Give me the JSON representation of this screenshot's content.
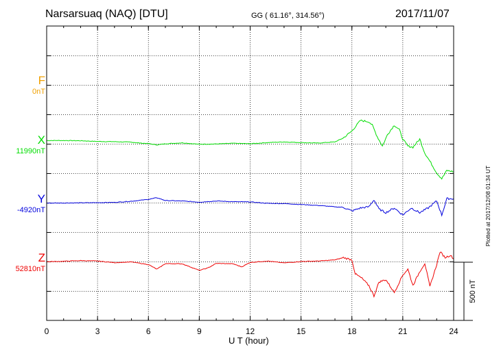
{
  "header": {
    "station": "Narsarsuaq (NAQ)  [DTU]",
    "coords": "GG ( 61.16°, 314.56°)",
    "date": "2017/11/07"
  },
  "channels": [
    {
      "symbol": "F",
      "baseline": "0nT",
      "color": "#f0a000"
    },
    {
      "symbol": "X",
      "baseline": "11990nT",
      "color": "#00dd00"
    },
    {
      "symbol": "Y",
      "baseline": "-4920nT",
      "color": "#0000dd"
    },
    {
      "symbol": "Z",
      "baseline": "52810nT",
      "color": "#ee0000"
    }
  ],
  "plotted": "Plotted at 2017/12/08 01:34 UT",
  "chart_data": {
    "type": "line",
    "xlabel": "U T (hour)",
    "xlim": [
      0,
      24
    ],
    "xticks": [
      0,
      3,
      6,
      9,
      12,
      15,
      18,
      21,
      24
    ],
    "scale_bar": "500 nT",
    "scale_bar_nT": 500,
    "grid": true,
    "series": [
      {
        "name": "X",
        "color": "#00dd00",
        "points": [
          [
            0,
            28
          ],
          [
            1,
            28
          ],
          [
            2,
            26
          ],
          [
            3,
            20
          ],
          [
            4,
            18
          ],
          [
            5,
            14
          ],
          [
            5.5,
            6
          ],
          [
            6,
            2
          ],
          [
            6.5,
            -10
          ],
          [
            7,
            0
          ],
          [
            8,
            8
          ],
          [
            9,
            -4
          ],
          [
            10,
            -2
          ],
          [
            11,
            4
          ],
          [
            12,
            0
          ],
          [
            13,
            10
          ],
          [
            14,
            16
          ],
          [
            15,
            10
          ],
          [
            16,
            6
          ],
          [
            17,
            16
          ],
          [
            17.5,
            50
          ],
          [
            18,
            110
          ],
          [
            18.5,
            200
          ],
          [
            19,
            190
          ],
          [
            19.2,
            160
          ],
          [
            19.5,
            60
          ],
          [
            19.8,
            -20
          ],
          [
            20.1,
            80
          ],
          [
            20.5,
            160
          ],
          [
            20.8,
            120
          ],
          [
            21,
            40
          ],
          [
            21.3,
            -20
          ],
          [
            21.6,
            -30
          ],
          [
            22,
            40
          ],
          [
            22.3,
            -80
          ],
          [
            22.6,
            -150
          ],
          [
            23,
            -250
          ],
          [
            23.3,
            -300
          ],
          [
            23.6,
            -230
          ],
          [
            24,
            -240
          ]
        ]
      },
      {
        "name": "Y",
        "color": "#0000dd",
        "points": [
          [
            0,
            2
          ],
          [
            2,
            4
          ],
          [
            4,
            8
          ],
          [
            5,
            18
          ],
          [
            6,
            34
          ],
          [
            6.5,
            48
          ],
          [
            7,
            24
          ],
          [
            8,
            20
          ],
          [
            9,
            10
          ],
          [
            10,
            20
          ],
          [
            11,
            14
          ],
          [
            12,
            12
          ],
          [
            13,
            0
          ],
          [
            14,
            -2
          ],
          [
            15,
            -10
          ],
          [
            16,
            -18
          ],
          [
            17,
            -30
          ],
          [
            17.5,
            -34
          ],
          [
            18,
            -66
          ],
          [
            18.5,
            -40
          ],
          [
            19,
            -30
          ],
          [
            19.3,
            30
          ],
          [
            19.6,
            -50
          ],
          [
            20,
            -80
          ],
          [
            20.5,
            -40
          ],
          [
            21,
            -100
          ],
          [
            21.5,
            -40
          ],
          [
            22,
            -80
          ],
          [
            22.5,
            -40
          ],
          [
            23,
            20
          ],
          [
            23.3,
            -100
          ],
          [
            23.6,
            40
          ],
          [
            24,
            40
          ]
        ]
      },
      {
        "name": "Z",
        "color": "#ee0000",
        "points": [
          [
            0,
            4
          ],
          [
            1,
            8
          ],
          [
            2,
            14
          ],
          [
            3,
            10
          ],
          [
            4,
            -4
          ],
          [
            5,
            2
          ],
          [
            6,
            -20
          ],
          [
            6.5,
            -60
          ],
          [
            7,
            -12
          ],
          [
            8,
            -14
          ],
          [
            9,
            -70
          ],
          [
            9.5,
            -50
          ],
          [
            10,
            -10
          ],
          [
            11,
            -14
          ],
          [
            11.5,
            -40
          ],
          [
            12,
            -2
          ],
          [
            13,
            10
          ],
          [
            14,
            -6
          ],
          [
            15,
            6
          ],
          [
            16,
            10
          ],
          [
            17,
            20
          ],
          [
            17.5,
            40
          ],
          [
            18,
            20
          ],
          [
            18.2,
            -100
          ],
          [
            18.6,
            -140
          ],
          [
            19,
            -200
          ],
          [
            19.3,
            -290
          ],
          [
            19.6,
            -170
          ],
          [
            20,
            -150
          ],
          [
            20.5,
            -260
          ],
          [
            21,
            -110
          ],
          [
            21.3,
            -60
          ],
          [
            21.6,
            -200
          ],
          [
            22,
            -80
          ],
          [
            22.3,
            -10
          ],
          [
            22.6,
            -210
          ],
          [
            23,
            -20
          ],
          [
            23.2,
            90
          ],
          [
            23.5,
            40
          ],
          [
            23.8,
            60
          ],
          [
            24,
            30
          ]
        ]
      }
    ]
  }
}
